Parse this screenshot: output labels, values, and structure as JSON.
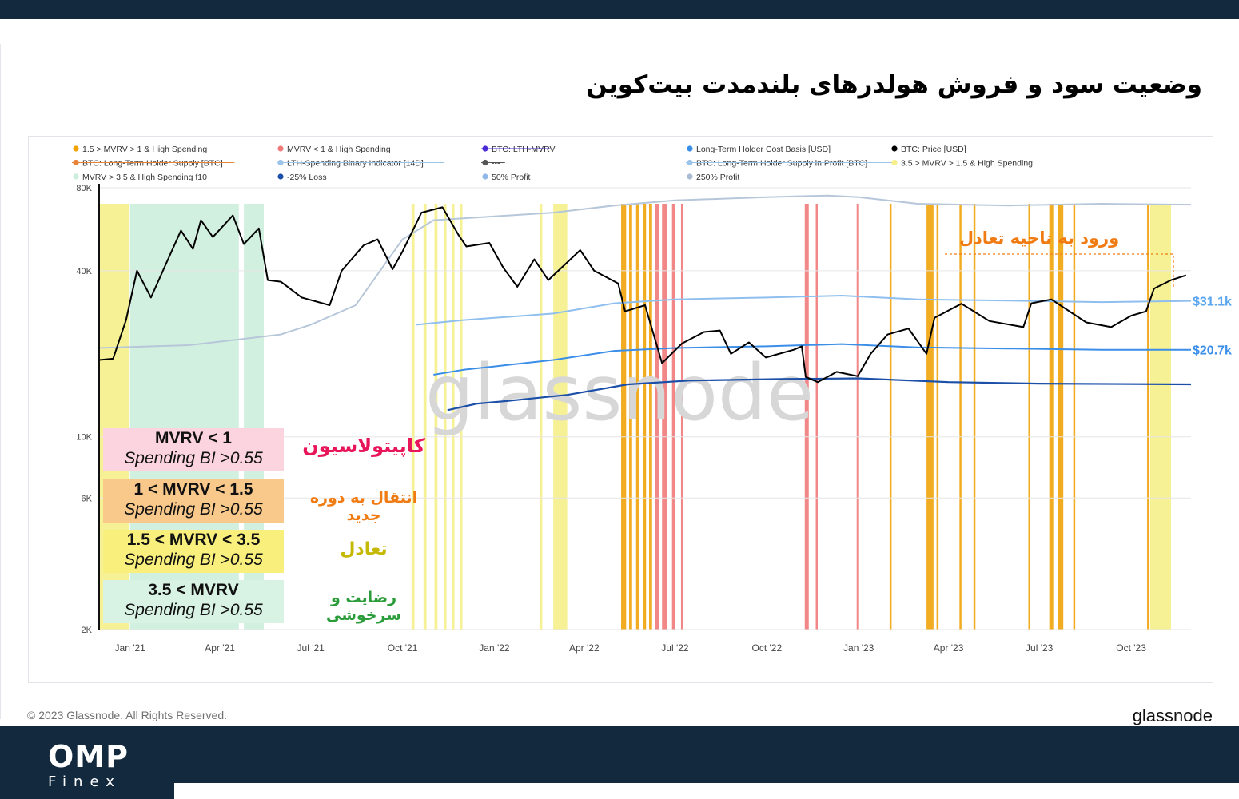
{
  "title": "وضعیت سود و فروش هولدرهای بلندمدت بیت‌کوین",
  "brand": {
    "logo_main": "OMP",
    "logo_sub": "Finex"
  },
  "footer": {
    "copyright": "© 2023 Glassnode. All Rights Reserved.",
    "brand": "glassnode"
  },
  "watermark": "glassnode",
  "legend": [
    {
      "label": "1.5 > MVRV > 1 & High Spending",
      "color": "#f0a30a",
      "style": "dot"
    },
    {
      "label": "MVRV < 1 & High Spending",
      "color": "#f07a7a",
      "style": "dot"
    },
    {
      "label": "BTC: LTH-MVRV",
      "color": "#4b2bd6",
      "style": "strike"
    },
    {
      "label": "Long-Term Holder Cost Basis [USD]",
      "color": "#3b8ee8",
      "style": "dot"
    },
    {
      "label": "BTC: Price [USD]",
      "color": "#000000",
      "style": "dot"
    },
    {
      "label": "BTC: Long-Term Holder Supply [BTC]",
      "color": "#e8843a",
      "style": "strike"
    },
    {
      "label": "LTH-Spending Binary Indicator [14D]",
      "color": "#9cc3e8",
      "style": "strike"
    },
    {
      "label": "---",
      "color": "#555555",
      "style": "strike"
    },
    {
      "label": "BTC: Long-Term Holder Supply in Profit [BTC]",
      "color": "#9cc3e8",
      "style": "strike"
    },
    {
      "label": "3.5 > MVRV > 1.5 & High Spending",
      "color": "#f5f08a",
      "style": "dot"
    },
    {
      "label": "MVRV > 3.5 & High Spending f10",
      "color": "#cdeedd",
      "style": "dot"
    },
    {
      "label": "-25% Loss",
      "color": "#1b4fa8",
      "style": "dot"
    },
    {
      "label": "50% Profit",
      "color": "#8fb8e8",
      "style": "dot"
    },
    {
      "label": "250% Profit",
      "color": "#a9bcd3",
      "style": "dot"
    }
  ],
  "phases": [
    {
      "line1": "MVRV < 1",
      "line2": "Spending BI >0.55",
      "bg": "#fbd4e0",
      "label_fa": "کاپیتولاسیون",
      "label_color": "#e8155a"
    },
    {
      "line1": "1 < MVRV < 1.5",
      "line2": "Spending BI >0.55",
      "bg": "#f8c98b",
      "label_fa": "انتقال به دوره جدید",
      "label_color": "#f07b12"
    },
    {
      "line1": "1.5 < MVRV < 3.5",
      "line2": "Spending BI >0.55",
      "bg": "#f8ef7c",
      "label_fa": "تعادل",
      "label_color": "#c5b800"
    },
    {
      "line1": "3.5 < MVRV",
      "line2": "Spending BI >0.55",
      "bg": "#d8f2e4",
      "label_fa": "رضایت و سرخوشی",
      "label_color": "#2a9d3a"
    }
  ],
  "callout": {
    "text": "ورود به ناحیه تعادل",
    "color": "#f07b12"
  },
  "chart_data": {
    "type": "line",
    "title": "",
    "xlabel": "",
    "ylabel": "",
    "y_scale": "log",
    "ylim": [
      2000,
      80000
    ],
    "xlim": [
      "2020-12-01",
      "2023-11-30"
    ],
    "y_ticks": [
      {
        "label": "2K",
        "value": 2000
      },
      {
        "label": "6K",
        "value": 6000
      },
      {
        "label": "10K",
        "value": 10000
      },
      {
        "label": "40K",
        "value": 40000
      },
      {
        "label": "80K",
        "value": 80000
      }
    ],
    "x_ticks": [
      {
        "label": "Jan '21",
        "date": "2021-01-01"
      },
      {
        "label": "Apr '21",
        "date": "2021-04-01"
      },
      {
        "label": "Jul '21",
        "date": "2021-07-01"
      },
      {
        "label": "Oct '21",
        "date": "2021-10-01"
      },
      {
        "label": "Jan '22",
        "date": "2022-01-01"
      },
      {
        "label": "Apr '22",
        "date": "2022-04-01"
      },
      {
        "label": "Jul '22",
        "date": "2022-07-01"
      },
      {
        "label": "Oct '22",
        "date": "2022-10-01"
      },
      {
        "label": "Jan '23",
        "date": "2023-01-01"
      },
      {
        "label": "Apr '23",
        "date": "2023-04-01"
      },
      {
        "label": "Jul '23",
        "date": "2023-07-01"
      },
      {
        "label": "Oct '23",
        "date": "2023-10-01"
      }
    ],
    "end_labels": [
      {
        "label": "$31.1k",
        "series": "50% Profit",
        "color": "#5aa6ee"
      },
      {
        "label": "$20.7k",
        "series": "Long-Term Holder Cost Basis [USD]",
        "color": "#3b8ee8"
      }
    ],
    "series": [
      {
        "name": "BTC: Price [USD]",
        "color": "#000000",
        "width": 2,
        "points": [
          [
            "2020-12-01",
            19000
          ],
          [
            "2020-12-15",
            19200
          ],
          [
            "2020-12-28",
            26500
          ],
          [
            "2021-01-08",
            40000
          ],
          [
            "2021-01-22",
            32000
          ],
          [
            "2021-02-08",
            44000
          ],
          [
            "2021-02-21",
            56000
          ],
          [
            "2021-03-05",
            48000
          ],
          [
            "2021-03-13",
            61000
          ],
          [
            "2021-03-25",
            53000
          ],
          [
            "2021-04-14",
            63500
          ],
          [
            "2021-04-25",
            50000
          ],
          [
            "2021-05-10",
            57000
          ],
          [
            "2021-05-19",
            37000
          ],
          [
            "2021-06-01",
            36500
          ],
          [
            "2021-06-22",
            32000
          ],
          [
            "2021-07-20",
            30000
          ],
          [
            "2021-08-01",
            40000
          ],
          [
            "2021-08-23",
            49500
          ],
          [
            "2021-09-06",
            52000
          ],
          [
            "2021-09-21",
            40500
          ],
          [
            "2021-10-01",
            47000
          ],
          [
            "2021-10-20",
            65000
          ],
          [
            "2021-11-10",
            68000
          ],
          [
            "2021-11-26",
            54000
          ],
          [
            "2021-12-04",
            49000
          ],
          [
            "2021-12-27",
            50500
          ],
          [
            "2022-01-10",
            41000
          ],
          [
            "2022-01-24",
            35000
          ],
          [
            "2022-02-10",
            44000
          ],
          [
            "2022-02-24",
            37000
          ],
          [
            "2022-03-28",
            47500
          ],
          [
            "2022-04-11",
            40000
          ],
          [
            "2022-05-05",
            36000
          ],
          [
            "2022-05-12",
            28500
          ],
          [
            "2022-06-01",
            30000
          ],
          [
            "2022-06-18",
            18500
          ],
          [
            "2022-07-08",
            21800
          ],
          [
            "2022-07-30",
            24000
          ],
          [
            "2022-08-15",
            24300
          ],
          [
            "2022-08-26",
            20000
          ],
          [
            "2022-09-13",
            22000
          ],
          [
            "2022-09-30",
            19400
          ],
          [
            "2022-10-28",
            20700
          ],
          [
            "2022-11-05",
            21300
          ],
          [
            "2022-11-09",
            16500
          ],
          [
            "2022-11-21",
            15800
          ],
          [
            "2022-12-10",
            17200
          ],
          [
            "2022-12-31",
            16600
          ],
          [
            "2023-01-13",
            20000
          ],
          [
            "2023-01-30",
            23500
          ],
          [
            "2023-02-20",
            24700
          ],
          [
            "2023-03-10",
            20000
          ],
          [
            "2023-03-18",
            27000
          ],
          [
            "2023-04-14",
            30400
          ],
          [
            "2023-05-12",
            26300
          ],
          [
            "2023-06-15",
            25000
          ],
          [
            "2023-06-23",
            30500
          ],
          [
            "2023-07-13",
            31500
          ],
          [
            "2023-08-17",
            26000
          ],
          [
            "2023-09-11",
            25000
          ],
          [
            "2023-10-01",
            27500
          ],
          [
            "2023-10-16",
            28500
          ],
          [
            "2023-10-24",
            34500
          ],
          [
            "2023-11-10",
            37000
          ],
          [
            "2023-11-25",
            38500
          ]
        ]
      },
      {
        "name": "250% Profit",
        "color": "#b7c7da",
        "width": 2,
        "points": [
          [
            "2020-12-01",
            21000
          ],
          [
            "2021-03-01",
            21500
          ],
          [
            "2021-06-01",
            23500
          ],
          [
            "2021-07-01",
            25500
          ],
          [
            "2021-08-15",
            30000
          ],
          [
            "2021-10-01",
            52000
          ],
          [
            "2021-11-01",
            61000
          ],
          [
            "2022-01-01",
            63000
          ],
          [
            "2022-03-01",
            65000
          ],
          [
            "2022-05-01",
            69000
          ],
          [
            "2022-07-01",
            72000
          ],
          [
            "2022-10-01",
            74000
          ],
          [
            "2022-12-01",
            75000
          ],
          [
            "2023-01-01",
            74000
          ],
          [
            "2023-03-01",
            70000
          ],
          [
            "2023-06-01",
            69000
          ],
          [
            "2023-09-01",
            70000
          ],
          [
            "2023-11-30",
            69500
          ]
        ]
      },
      {
        "name": "50% Profit",
        "color": "#8fbfee",
        "width": 2,
        "points": [
          [
            "2021-10-15",
            25500
          ],
          [
            "2021-12-01",
            26500
          ],
          [
            "2022-01-01",
            27000
          ],
          [
            "2022-03-01",
            28000
          ],
          [
            "2022-05-01",
            30500
          ],
          [
            "2022-07-01",
            31500
          ],
          [
            "2022-10-01",
            32000
          ],
          [
            "2022-12-15",
            32500
          ],
          [
            "2023-03-01",
            31500
          ],
          [
            "2023-06-01",
            31200
          ],
          [
            "2023-09-01",
            30800
          ],
          [
            "2023-11-30",
            31100
          ]
        ]
      },
      {
        "name": "Long-Term Holder Cost Basis [USD]",
        "color": "#3b8ee8",
        "width": 2,
        "points": [
          [
            "2021-11-01",
            16800
          ],
          [
            "2021-12-01",
            17500
          ],
          [
            "2022-01-01",
            18000
          ],
          [
            "2022-03-01",
            19000
          ],
          [
            "2022-05-01",
            20500
          ],
          [
            "2022-07-01",
            21000
          ],
          [
            "2022-10-01",
            21300
          ],
          [
            "2022-12-15",
            21700
          ],
          [
            "2023-03-01",
            21100
          ],
          [
            "2023-06-01",
            20900
          ],
          [
            "2023-09-01",
            20700
          ],
          [
            "2023-11-30",
            20700
          ]
        ]
      },
      {
        "name": "-25% Loss",
        "color": "#1b4fa8",
        "width": 2.2,
        "points": [
          [
            "2021-11-15",
            12500
          ],
          [
            "2021-12-15",
            13200
          ],
          [
            "2022-01-15",
            13500
          ],
          [
            "2022-03-15",
            14200
          ],
          [
            "2022-05-15",
            15500
          ],
          [
            "2022-07-15",
            16000
          ],
          [
            "2022-10-15",
            16200
          ],
          [
            "2023-01-01",
            16300
          ],
          [
            "2023-04-01",
            15800
          ],
          [
            "2023-07-01",
            15600
          ],
          [
            "2023-11-30",
            15500
          ]
        ]
      }
    ],
    "bands": [
      {
        "name": "MVRV > 3.5 & High Spending f10",
        "color": "#cdeedd",
        "ranges": [
          [
            "2021-01-01",
            "2021-04-20"
          ],
          [
            "2021-04-25",
            "2021-05-15"
          ]
        ]
      },
      {
        "name": "3.5 > MVRV > 1.5 & High Spending",
        "color": "#f5f08a",
        "ranges": [
          [
            "2020-12-01",
            "2020-12-31"
          ],
          [
            "2021-10-10",
            "2021-10-13"
          ],
          [
            "2021-10-22",
            "2021-10-25"
          ],
          [
            "2021-11-02",
            "2021-11-05"
          ],
          [
            "2021-11-12",
            "2021-11-14"
          ],
          [
            "2021-11-20",
            "2021-11-22"
          ],
          [
            "2021-11-28",
            "2021-11-30"
          ],
          [
            "2022-03-01",
            "2022-03-15"
          ],
          [
            "2022-02-16",
            "2022-02-18"
          ],
          [
            "2023-10-20",
            "2023-11-10"
          ]
        ]
      },
      {
        "name": "1.5 > MVRV > 1 & High Spending",
        "color": "#f0a30a",
        "ranges": [
          [
            "2022-05-08",
            "2022-05-13"
          ],
          [
            "2022-05-16",
            "2022-05-19"
          ],
          [
            "2022-05-23",
            "2022-05-26"
          ],
          [
            "2022-05-30",
            "2022-06-02"
          ],
          [
            "2022-06-05",
            "2022-06-08"
          ],
          [
            "2023-02-01",
            "2023-02-03"
          ],
          [
            "2023-03-10",
            "2023-03-17"
          ],
          [
            "2023-03-20",
            "2023-03-22"
          ],
          [
            "2023-04-12",
            "2023-04-14"
          ],
          [
            "2023-04-26",
            "2023-04-28"
          ],
          [
            "2023-06-20",
            "2023-06-22"
          ],
          [
            "2023-07-11",
            "2023-07-15"
          ],
          [
            "2023-07-20",
            "2023-07-25"
          ],
          [
            "2023-08-04",
            "2023-08-06"
          ],
          [
            "2023-10-17",
            "2023-10-19"
          ]
        ]
      },
      {
        "name": "MVRV < 1 & High Spending",
        "color": "#f07a7a",
        "ranges": [
          [
            "2022-06-11",
            "2022-06-15"
          ],
          [
            "2022-06-18",
            "2022-06-23"
          ],
          [
            "2022-06-28",
            "2022-07-01"
          ],
          [
            "2022-07-07",
            "2022-07-09"
          ],
          [
            "2022-11-08",
            "2022-11-12"
          ],
          [
            "2022-11-19",
            "2022-11-21"
          ],
          [
            "2022-12-30",
            "2022-12-31"
          ]
        ]
      }
    ]
  }
}
